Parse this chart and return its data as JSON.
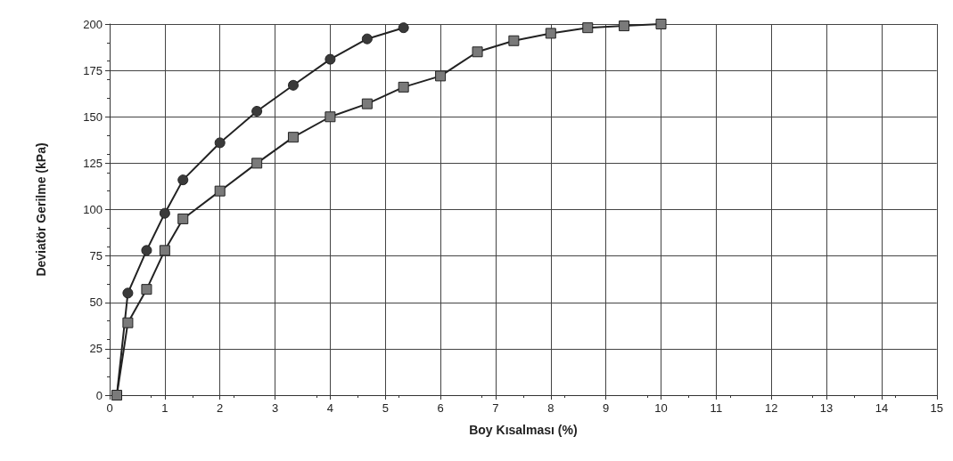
{
  "chart_data": {
    "type": "line",
    "xlabel": "Boy Kısalması (%)",
    "ylabel": "Deviatör Gerilme (kPa)",
    "xlim": [
      0,
      15
    ],
    "xticks": [
      0,
      1,
      2,
      3,
      4,
      5,
      6,
      7,
      8,
      9,
      10,
      11,
      12,
      13,
      14,
      15
    ],
    "ylim": [
      0,
      200
    ],
    "yticks": [
      0,
      25,
      50,
      75,
      100,
      125,
      150,
      175,
      200
    ],
    "grid": true,
    "line_style": "solid",
    "series": [
      {
        "color": "#3a3a3a",
        "marker": "circle",
        "x": [
          0.13,
          0.33,
          0.67,
          1.0,
          1.33,
          2.0,
          2.67,
          3.33,
          4.0,
          4.67,
          5.33
        ],
        "values": [
          0,
          55,
          78,
          98,
          116,
          136,
          153,
          167,
          181,
          192,
          198
        ]
      },
      {
        "color": "#7a7a7a",
        "marker": "square",
        "x": [
          0.13,
          0.33,
          0.67,
          1.0,
          1.33,
          2.0,
          2.67,
          3.33,
          4.0,
          4.67,
          5.33,
          6.0,
          6.67,
          7.33,
          8.0,
          8.67,
          9.33,
          10.0
        ],
        "values": [
          0,
          39,
          57,
          78,
          95,
          110,
          125,
          139,
          150,
          157,
          166,
          172,
          185,
          191,
          195,
          198,
          199,
          200
        ]
      }
    ]
  }
}
